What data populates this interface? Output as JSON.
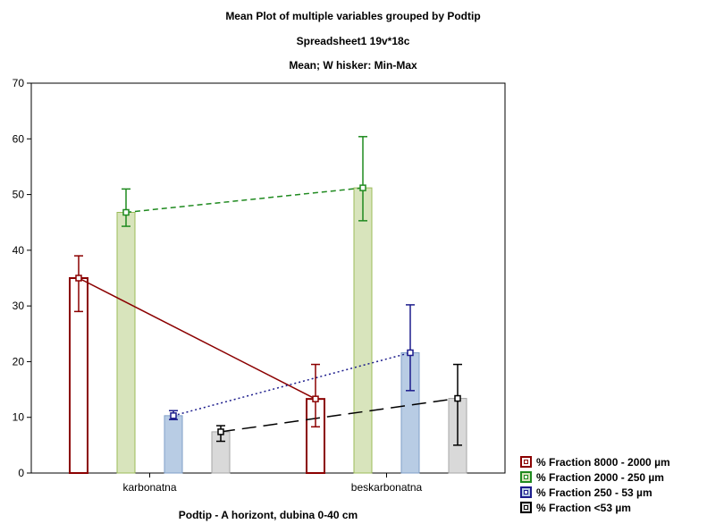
{
  "chart_data": {
    "type": "bar",
    "title": "Mean Plot of multiple variables grouped by Podtip",
    "subtitle_lines": [
      "Spreadsheet1 19v*18c",
      "Mean; W hisker: Min-Max"
    ],
    "xlabel": "Podtip - A horizont, dubina 0-40 cm",
    "ylabel": "",
    "categories": [
      "karbonatna",
      "beskarbonatna"
    ],
    "ylim": [
      0,
      70
    ],
    "yticks": [
      0,
      10,
      20,
      30,
      40,
      50,
      60,
      70
    ],
    "grid": false,
    "legend_position": "bottom-right",
    "series": [
      {
        "name": "% Fraction 8000 - 2000 µm",
        "values": [
          35,
          13.3
        ],
        "min": [
          29,
          8.3
        ],
        "max": [
          39,
          19.5
        ],
        "bar_fill": "#ffffff",
        "bar_stroke": "#8b0000",
        "line_color": "#8b0000",
        "line_style": "solid"
      },
      {
        "name": "% Fraction 2000 - 250 µm",
        "values": [
          46.8,
          51.2
        ],
        "min": [
          44.3,
          45.3
        ],
        "max": [
          51,
          60.4
        ],
        "bar_fill": "#d8e4bc",
        "bar_stroke": "#9bbb59",
        "line_color": "#1f8a1f",
        "line_style": "dashed"
      },
      {
        "name": "% Fraction 250 - 53 µm",
        "values": [
          10.3,
          21.6
        ],
        "min": [
          9.6,
          14.8
        ],
        "max": [
          11.2,
          30.2
        ],
        "bar_fill": "#b8cce4",
        "bar_stroke": "#7f9fc8",
        "line_color": "#1c1c8c",
        "line_style": "dotted"
      },
      {
        "name": "% Fraction <53 µm",
        "values": [
          7.4,
          13.4
        ],
        "min": [
          5.7,
          5
        ],
        "max": [
          8.5,
          19.5
        ],
        "bar_fill": "#d9d9d9",
        "bar_stroke": "#a6a6a6",
        "line_color": "#000000",
        "line_style": "longdash"
      }
    ]
  }
}
